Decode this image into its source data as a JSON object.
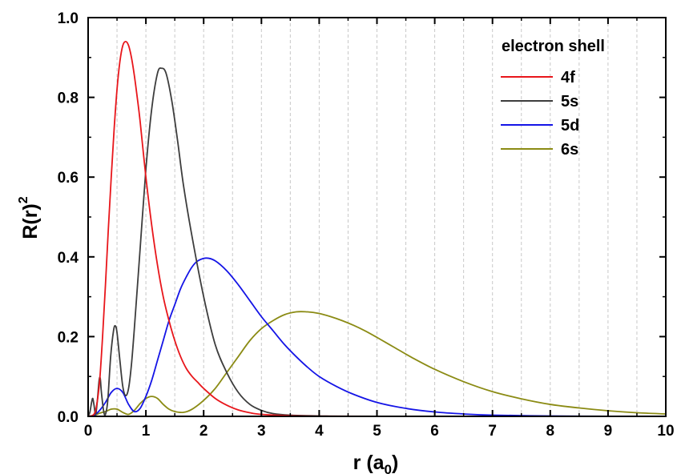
{
  "chart_data": {
    "type": "line",
    "xlabel": {
      "main": "r (a",
      "sub": "0",
      "close": ")"
    },
    "ylabel": {
      "main": "R(r)",
      "sup": "2"
    },
    "xlim": [
      0,
      10
    ],
    "ylim": [
      0,
      1.0
    ],
    "x_ticks": [
      "0",
      "1",
      "2",
      "3",
      "4",
      "5",
      "6",
      "7",
      "8",
      "9",
      "10"
    ],
    "y_ticks": [
      "0.0",
      "0.2",
      "0.4",
      "0.6",
      "0.8",
      "1.0"
    ],
    "grid": "vertical dashed lines at every 0.5",
    "legend": {
      "title": "electron shell",
      "position": "top-right"
    },
    "series": [
      {
        "name": "4f",
        "color": "#e8161b",
        "points": [
          [
            0,
            0
          ],
          [
            0.1,
            0.005
          ],
          [
            0.15,
            0.03
          ],
          [
            0.2,
            0.09
          ],
          [
            0.25,
            0.2
          ],
          [
            0.3,
            0.33
          ],
          [
            0.35,
            0.47
          ],
          [
            0.4,
            0.6
          ],
          [
            0.45,
            0.72
          ],
          [
            0.5,
            0.82
          ],
          [
            0.55,
            0.89
          ],
          [
            0.6,
            0.93
          ],
          [
            0.65,
            0.94
          ],
          [
            0.7,
            0.93
          ],
          [
            0.75,
            0.9
          ],
          [
            0.8,
            0.855
          ],
          [
            0.85,
            0.8
          ],
          [
            0.9,
            0.74
          ],
          [
            1.0,
            0.6
          ],
          [
            1.1,
            0.48
          ],
          [
            1.2,
            0.38
          ],
          [
            1.3,
            0.3
          ],
          [
            1.4,
            0.24
          ],
          [
            1.5,
            0.19
          ],
          [
            1.6,
            0.15
          ],
          [
            1.7,
            0.12
          ],
          [
            1.8,
            0.1
          ],
          [
            1.9,
            0.085
          ],
          [
            2.0,
            0.07
          ],
          [
            2.2,
            0.045
          ],
          [
            2.4,
            0.028
          ],
          [
            2.6,
            0.016
          ],
          [
            2.8,
            0.009
          ],
          [
            3.0,
            0.005
          ],
          [
            3.5,
            0.0015
          ],
          [
            4,
            0.0005
          ],
          [
            5,
            0.0001
          ],
          [
            10,
            0
          ]
        ]
      },
      {
        "name": "5s",
        "color": "#3d3d3d",
        "points": [
          [
            0,
            0
          ],
          [
            0.03,
            0.01
          ],
          [
            0.06,
            0.035
          ],
          [
            0.08,
            0.045
          ],
          [
            0.1,
            0.03
          ],
          [
            0.13,
            0.005
          ],
          [
            0.16,
            0.04
          ],
          [
            0.19,
            0.09
          ],
          [
            0.21,
            0.095
          ],
          [
            0.23,
            0.06
          ],
          [
            0.27,
            0.012
          ],
          [
            0.3,
            0.005
          ],
          [
            0.34,
            0.04
          ],
          [
            0.39,
            0.15
          ],
          [
            0.44,
            0.215
          ],
          [
            0.47,
            0.227
          ],
          [
            0.5,
            0.21
          ],
          [
            0.55,
            0.14
          ],
          [
            0.6,
            0.075
          ],
          [
            0.65,
            0.052
          ],
          [
            0.7,
            0.07
          ],
          [
            0.75,
            0.13
          ],
          [
            0.8,
            0.22
          ],
          [
            0.9,
            0.42
          ],
          [
            1.0,
            0.62
          ],
          [
            1.1,
            0.77
          ],
          [
            1.2,
            0.86
          ],
          [
            1.27,
            0.873
          ],
          [
            1.35,
            0.86
          ],
          [
            1.45,
            0.79
          ],
          [
            1.55,
            0.69
          ],
          [
            1.65,
            0.58
          ],
          [
            1.8,
            0.45
          ],
          [
            2.0,
            0.3
          ],
          [
            2.2,
            0.18
          ],
          [
            2.4,
            0.11
          ],
          [
            2.6,
            0.06
          ],
          [
            2.8,
            0.03
          ],
          [
            3.0,
            0.015
          ],
          [
            3.2,
            0.007
          ],
          [
            3.5,
            0.003
          ],
          [
            4,
            0.001
          ],
          [
            5,
            0.0002
          ],
          [
            10,
            0
          ]
        ]
      },
      {
        "name": "5d",
        "color": "#1414e6",
        "points": [
          [
            0,
            0
          ],
          [
            0.1,
            0.002
          ],
          [
            0.2,
            0.015
          ],
          [
            0.3,
            0.035
          ],
          [
            0.4,
            0.06
          ],
          [
            0.5,
            0.07
          ],
          [
            0.6,
            0.06
          ],
          [
            0.7,
            0.03
          ],
          [
            0.8,
            0.012
          ],
          [
            0.9,
            0.02
          ],
          [
            1.0,
            0.05
          ],
          [
            1.1,
            0.09
          ],
          [
            1.2,
            0.14
          ],
          [
            1.3,
            0.19
          ],
          [
            1.4,
            0.24
          ],
          [
            1.5,
            0.28
          ],
          [
            1.6,
            0.32
          ],
          [
            1.7,
            0.35
          ],
          [
            1.8,
            0.375
          ],
          [
            1.9,
            0.39
          ],
          [
            2.05,
            0.397
          ],
          [
            2.2,
            0.39
          ],
          [
            2.4,
            0.365
          ],
          [
            2.6,
            0.33
          ],
          [
            2.8,
            0.29
          ],
          [
            3.0,
            0.25
          ],
          [
            3.2,
            0.215
          ],
          [
            3.4,
            0.18
          ],
          [
            3.6,
            0.15
          ],
          [
            3.8,
            0.123
          ],
          [
            4.0,
            0.1
          ],
          [
            4.3,
            0.075
          ],
          [
            4.6,
            0.055
          ],
          [
            5.0,
            0.035
          ],
          [
            5.5,
            0.02
          ],
          [
            6.0,
            0.011
          ],
          [
            6.5,
            0.006
          ],
          [
            7.0,
            0.003
          ],
          [
            8,
            0.001
          ],
          [
            9,
            0.0003
          ],
          [
            10,
            0.0001
          ]
        ]
      },
      {
        "name": "6s",
        "color": "#8b8b14",
        "points": [
          [
            0,
            0
          ],
          [
            0.1,
            0.002
          ],
          [
            0.2,
            0.008
          ],
          [
            0.3,
            0.012
          ],
          [
            0.4,
            0.018
          ],
          [
            0.5,
            0.018
          ],
          [
            0.6,
            0.01
          ],
          [
            0.7,
            0.005
          ],
          [
            0.8,
            0.015
          ],
          [
            0.9,
            0.032
          ],
          [
            1.0,
            0.045
          ],
          [
            1.1,
            0.05
          ],
          [
            1.2,
            0.045
          ],
          [
            1.3,
            0.03
          ],
          [
            1.4,
            0.018
          ],
          [
            1.5,
            0.012
          ],
          [
            1.65,
            0.01
          ],
          [
            1.8,
            0.018
          ],
          [
            2.0,
            0.04
          ],
          [
            2.2,
            0.07
          ],
          [
            2.4,
            0.11
          ],
          [
            2.6,
            0.15
          ],
          [
            2.8,
            0.19
          ],
          [
            3.0,
            0.22
          ],
          [
            3.2,
            0.24
          ],
          [
            3.4,
            0.255
          ],
          [
            3.6,
            0.262
          ],
          [
            3.8,
            0.262
          ],
          [
            4.0,
            0.258
          ],
          [
            4.2,
            0.25
          ],
          [
            4.4,
            0.24
          ],
          [
            4.6,
            0.228
          ],
          [
            4.8,
            0.214
          ],
          [
            5.0,
            0.198
          ],
          [
            5.3,
            0.173
          ],
          [
            5.6,
            0.148
          ],
          [
            6.0,
            0.118
          ],
          [
            6.5,
            0.087
          ],
          [
            7.0,
            0.062
          ],
          [
            7.5,
            0.044
          ],
          [
            8.0,
            0.03
          ],
          [
            8.5,
            0.021
          ],
          [
            9.0,
            0.014
          ],
          [
            9.5,
            0.009
          ],
          [
            10.0,
            0.006
          ]
        ]
      }
    ]
  }
}
